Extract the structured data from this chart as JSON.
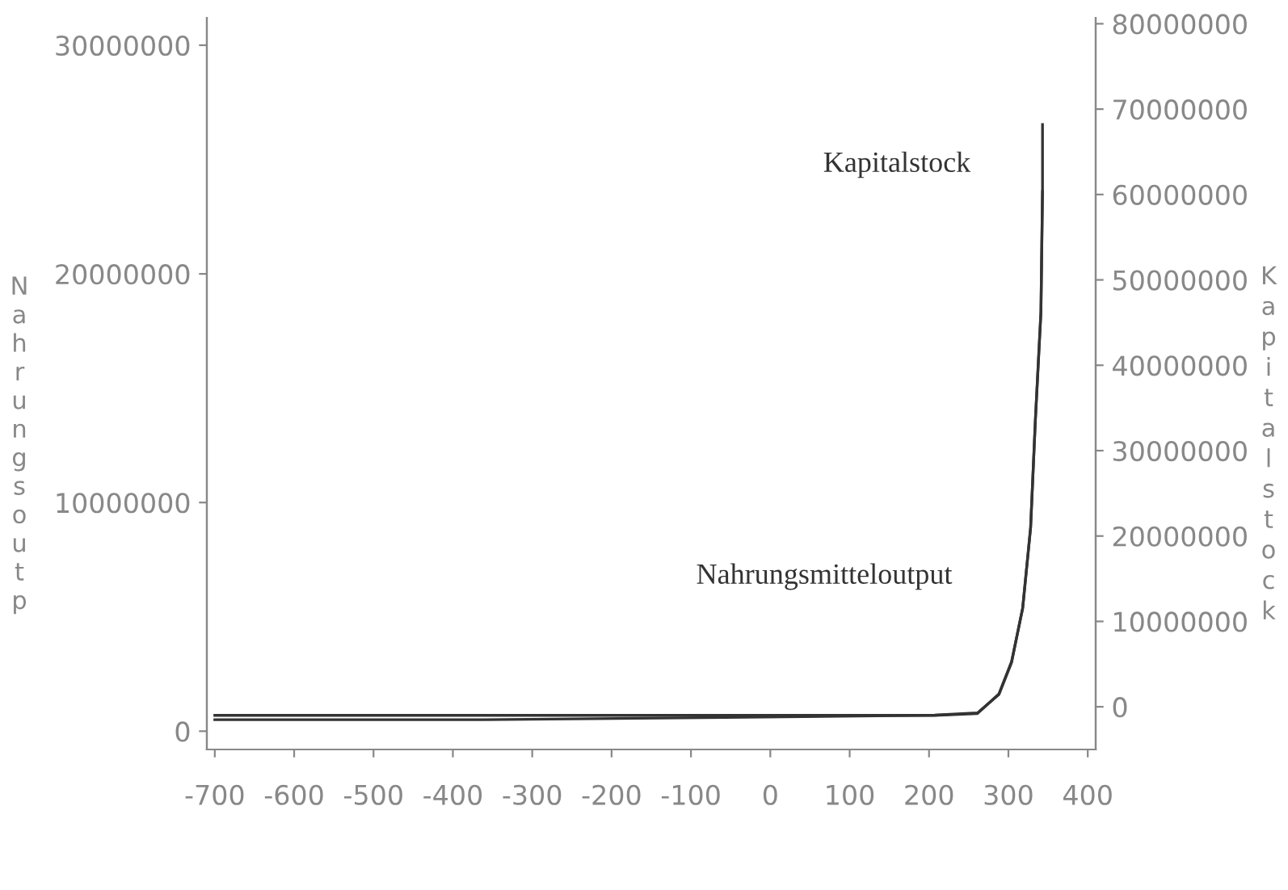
{
  "chart_data": {
    "type": "line",
    "x": [
      -700,
      -361,
      -57,
      207,
      261,
      288,
      304,
      318,
      328,
      334,
      341,
      343
    ],
    "series": [
      {
        "name": "Nahrungsmitteloutput",
        "color": "#333333",
        "values": [
          500000,
          500000,
          600000,
          700000,
          800000,
          1600000,
          3000000,
          5400000,
          8900000,
          13600000,
          18300000,
          23600000
        ]
      },
      {
        "name": "Kapitalstock",
        "color": "#333333",
        "axis": "y2",
        "x": [
          -700,
          -361,
          -57,
          207,
          261,
          288,
          304,
          318,
          328,
          334,
          341,
          343,
          343
        ],
        "values": [
          -1000000,
          -1000000,
          -1000000,
          -1000000,
          -800000,
          1500000,
          5300000,
          11500000,
          21000000,
          33600000,
          46300000,
          60500000,
          68200000
        ]
      }
    ],
    "ylabel": "Nahrungsoutp",
    "y2label": "Kapitalstock",
    "xlim": [
      -710,
      410
    ],
    "xticks": [
      -700,
      -600,
      -500,
      -400,
      -300,
      -200,
      -100,
      0,
      100,
      200,
      300,
      400
    ],
    "ylim": [
      -800000,
      31200000
    ],
    "yticks": [
      0,
      10000000,
      20000000,
      30000000
    ],
    "y2lim": [
      -5000000,
      80700000
    ],
    "y2ticks": [
      0,
      10000000,
      20000000,
      30000000,
      40000000,
      50000000,
      60000000,
      70000000,
      80000000
    ],
    "grid": false,
    "legend": false
  }
}
